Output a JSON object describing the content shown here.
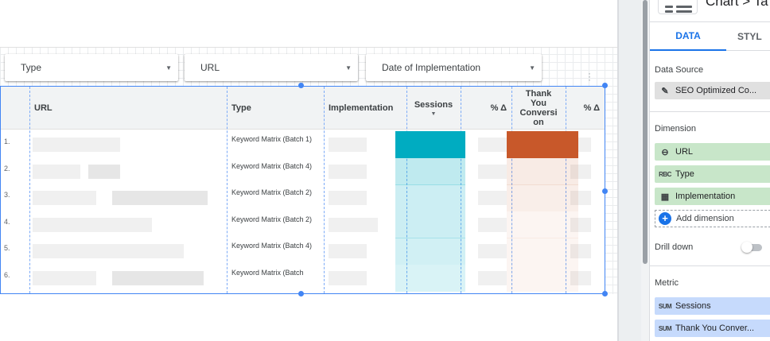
{
  "filters": [
    {
      "label": "Type"
    },
    {
      "label": "URL"
    },
    {
      "label": "Date of Implementation"
    }
  ],
  "table": {
    "columns": {
      "url": "URL",
      "type": "Type",
      "implementation": "Implementation",
      "sessions": "Sessions",
      "pct_delta_1": "% Δ",
      "thank_you": "Thank You Conversi on",
      "pct_delta_2": "% Δ"
    },
    "rows": [
      {
        "num": "1.",
        "type": "Keyword Matrix (Batch 1)"
      },
      {
        "num": "2.",
        "type": "Keyword Matrix (Batch 4)"
      },
      {
        "num": "3.",
        "type": "Keyword Matrix (Batch 2)"
      },
      {
        "num": "4.",
        "type": "Keyword Matrix (Batch 2)"
      },
      {
        "num": "5.",
        "type": "Keyword Matrix (Batch 4)"
      },
      {
        "num": "6.",
        "type": "Keyword Matrix (Batch"
      }
    ],
    "sessions_heat": [
      1.0,
      0.25,
      0.2,
      0.2,
      0.18,
      0.12
    ],
    "conversion_heat": [
      1.0,
      0.12,
      0.1,
      0.06,
      0.05,
      0.04
    ]
  },
  "colors": {
    "accent": "#1a73e8",
    "sessions_bar": "#00acc1",
    "conversion_bar": "#c8582a",
    "dimension_chip": "#c8e6c9",
    "metric_chip": "#c6dafc"
  },
  "panel": {
    "title": "Chart > Ta",
    "tabs": {
      "data": "DATA",
      "style": "STYL"
    },
    "data_source": {
      "heading": "Data Source",
      "name": "SEO Optimized Co..."
    },
    "dimension": {
      "heading": "Dimension",
      "items": [
        {
          "label": "URL",
          "icon": "link-icon"
        },
        {
          "label": "Type",
          "icon": "RBC"
        },
        {
          "label": "Implementation",
          "icon": "calendar-icon"
        }
      ],
      "add_label": "Add dimension"
    },
    "drill_down": {
      "label": "Drill down",
      "enabled": false
    },
    "metric": {
      "heading": "Metric",
      "items": [
        {
          "agg": "SUM",
          "label": "Sessions"
        },
        {
          "agg": "SUM",
          "label": "Thank You Conver..."
        }
      ]
    }
  }
}
